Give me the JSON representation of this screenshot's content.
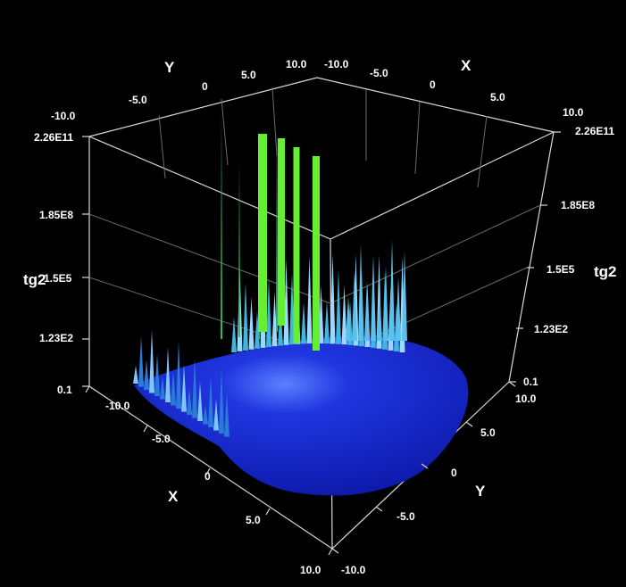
{
  "chart_data": {
    "type": "surface3d",
    "title": "",
    "x_axis": {
      "label": "X",
      "ticks": [
        "-10.0",
        "-5.0",
        "0",
        "5.0",
        "10.0"
      ],
      "range": [
        -10,
        10
      ]
    },
    "y_axis": {
      "label": "Y",
      "ticks": [
        "-10.0",
        "-5.0",
        "0",
        "5.0",
        "10.0"
      ],
      "range": [
        -10,
        10
      ]
    },
    "z_axis": {
      "label": "tg2",
      "scale": "log",
      "ticks": [
        "0.1",
        "1.23E2",
        "1.5E5",
        "1.85E8",
        "2.26E11"
      ],
      "range": [
        0.1,
        226000000000.0
      ]
    },
    "grid": true,
    "colors": {
      "background": "#000000",
      "surface_low": "#1a2ad8",
      "surface_mid": "#4fb0ff",
      "surface_high": "#66ee33",
      "box": "#d8d8d8"
    }
  }
}
